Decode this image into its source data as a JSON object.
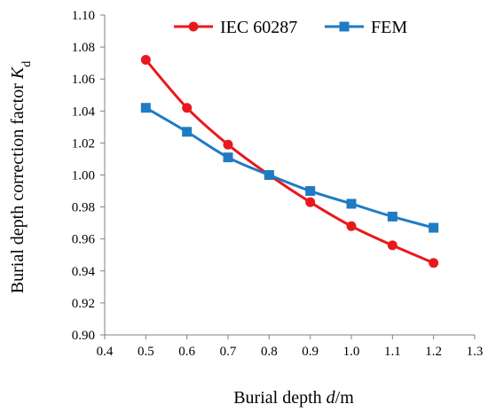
{
  "chart_data": {
    "type": "line",
    "title": "",
    "xlabel": "Burial depth d/m",
    "xlabel_parts": {
      "pre": "Burial depth ",
      "var": "d",
      "post": "/m"
    },
    "ylabel": "Burial depth correction factor Kd",
    "ylabel_parts": {
      "pre": "Burial depth correction factor ",
      "var": "K",
      "sub": "d"
    },
    "xlim": [
      0.4,
      1.3
    ],
    "ylim": [
      0.9,
      1.1
    ],
    "x_ticks": [
      "0.4",
      "0.5",
      "0.6",
      "0.7",
      "0.8",
      "0.9",
      "1.0",
      "1.1",
      "1.2",
      "1.3"
    ],
    "y_ticks": [
      "0.90",
      "0.92",
      "0.94",
      "0.96",
      "0.98",
      "1.00",
      "1.02",
      "1.04",
      "1.06",
      "1.08",
      "1.10"
    ],
    "grid": false,
    "legend_position": "top",
    "x": [
      0.5,
      0.6,
      0.7,
      0.8,
      0.9,
      1.0,
      1.1,
      1.2
    ],
    "series": [
      {
        "name": "IEC 60287",
        "color": "#e8191c",
        "marker": "circle",
        "values": [
          1.072,
          1.042,
          1.019,
          1.0,
          0.983,
          0.968,
          0.956,
          0.945
        ]
      },
      {
        "name": "FEM",
        "color": "#1f7bc3",
        "marker": "square",
        "values": [
          1.042,
          1.027,
          1.011,
          1.0,
          0.99,
          0.982,
          0.974,
          0.967
        ]
      }
    ]
  }
}
